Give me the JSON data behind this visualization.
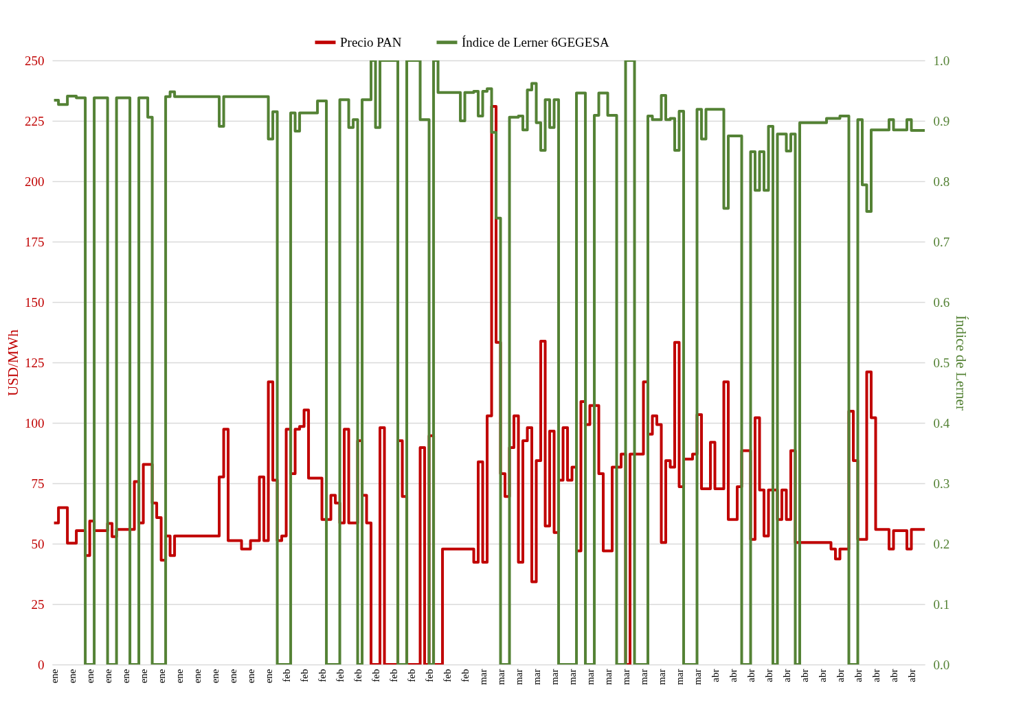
{
  "chart_data": {
    "type": "step",
    "ylabel": "USD/MWh",
    "y2label": "Índice de Lerner",
    "legend": "top",
    "grid": "y",
    "categories": [
      "ene",
      null,
      null,
      null,
      "ene",
      null,
      null,
      null,
      "ene",
      null,
      null,
      null,
      "ene",
      null,
      null,
      null,
      "ene",
      null,
      null,
      null,
      "ene",
      null,
      null,
      null,
      "ene",
      null,
      null,
      null,
      "ene",
      null,
      null,
      null,
      "ene",
      null,
      null,
      null,
      "ene",
      null,
      null,
      null,
      "ene",
      null,
      null,
      null,
      "ene",
      null,
      null,
      null,
      "ene",
      null,
      null,
      null,
      "feb",
      null,
      null,
      null,
      "feb",
      null,
      null,
      null,
      "feb",
      null,
      null,
      null,
      "feb",
      null,
      null,
      null,
      "feb",
      null,
      null,
      null,
      "feb",
      null,
      null,
      null,
      "feb",
      null,
      null,
      null,
      "feb",
      null,
      null,
      null,
      "feb",
      null,
      null,
      null,
      "feb",
      null,
      null,
      null,
      "feb",
      null,
      null,
      null,
      "mar",
      null,
      null,
      null,
      "mar",
      null,
      null,
      null,
      "mar",
      null,
      null,
      null,
      "mar",
      null,
      null,
      null,
      "mar",
      null,
      null,
      null,
      "mar",
      null,
      null,
      null,
      "mar",
      null,
      null,
      null,
      "mar",
      null,
      null,
      null,
      "mar",
      null,
      null,
      null,
      "mar",
      null,
      null,
      null,
      "mar",
      null,
      null,
      null,
      "mar",
      null,
      null,
      null,
      "mar",
      null,
      null,
      null,
      "abr",
      null,
      null,
      null,
      "abr",
      null,
      null,
      null,
      "abr",
      null,
      null,
      null,
      "abr",
      null,
      null,
      null,
      "abr",
      null,
      null,
      null,
      "abr",
      null,
      null,
      null,
      "abr",
      null,
      null,
      null,
      "abr",
      null,
      null,
      null,
      "abr",
      null,
      null,
      null,
      "abr",
      null,
      null,
      null,
      "abr",
      null,
      null,
      null,
      "abr",
      null,
      null,
      null
    ],
    "ylim": [
      0,
      250
    ],
    "yticks": [
      0,
      25,
      50,
      75,
      100,
      125,
      150,
      175,
      200,
      225,
      250
    ],
    "y2lim": [
      0,
      1
    ],
    "y2ticks": [
      {
        "value": 0,
        "label": "0.0"
      },
      0.1,
      0.2,
      0.3,
      0.4,
      0.5,
      0.6,
      0.7,
      0.8,
      0.9,
      {
        "value": 1,
        "label": "1.0"
      }
    ],
    "series": [
      {
        "name": "Precio PAN",
        "color": "#c00000",
        "values": [
          58.6,
          64.9,
          64.9,
          50.2,
          50.2,
          55.4,
          55.4,
          45.1,
          59.4,
          55.4,
          55.4,
          55.4,
          58.4,
          52.9,
          55.9,
          55.9,
          55.9,
          55.9,
          75.7,
          58.6,
          82.8,
          82.8,
          66.8,
          60.8,
          43.2,
          53.2,
          45.1,
          53.2,
          53.2,
          53.2,
          53.2,
          53.2,
          53.2,
          53.2,
          53.2,
          53.2,
          53.2,
          77.6,
          97.4,
          51.3,
          51.3,
          51.3,
          47.8,
          47.8,
          51.3,
          51.3,
          77.6,
          51.3,
          117.0,
          76.3,
          51.3,
          53.2,
          97.4,
          79.0,
          97.4,
          98.5,
          105.3,
          77.1,
          77.1,
          77.1,
          60.0,
          60.0,
          70.0,
          66.8,
          58.6,
          97.4,
          58.6,
          58.6,
          92.6,
          70.0,
          58.6,
          0,
          0,
          98.0,
          0,
          0,
          0,
          92.6,
          69.5,
          0,
          0,
          0,
          89.8,
          0,
          94.7,
          0,
          0,
          47.8,
          47.8,
          47.8,
          47.8,
          47.8,
          47.8,
          47.8,
          42.3,
          83.9,
          42.3,
          102.9,
          231.0,
          133.3,
          79.0,
          69.5,
          89.8,
          102.9,
          42.3,
          92.6,
          98.0,
          34.2,
          84.4,
          133.8,
          57.3,
          96.6,
          54.6,
          76.3,
          98.0,
          76.3,
          81.7,
          47.0,
          108.8,
          99.3,
          107.2,
          107.2,
          79.0,
          47.0,
          47.0,
          81.7,
          81.7,
          87.1,
          0,
          87.1,
          87.1,
          87.1,
          117.0,
          95.3,
          102.9,
          99.3,
          50.5,
          84.4,
          81.7,
          133.3,
          73.6,
          85.0,
          85.0,
          87.1,
          103.4,
          72.7,
          72.7,
          92.0,
          72.7,
          72.7,
          117.0,
          60.0,
          60.0,
          73.6,
          88.5,
          88.5,
          51.8,
          102.1,
          72.2,
          53.2,
          72.2,
          72.2,
          60.0,
          72.2,
          60.0,
          88.5,
          50.5,
          50.5,
          50.5,
          50.5,
          50.5,
          50.5,
          50.5,
          50.5,
          47.8,
          43.7,
          47.8,
          47.8,
          104.8,
          84.4,
          51.8,
          51.8,
          121.1,
          102.1,
          55.9,
          55.9,
          55.9,
          47.8,
          55.4,
          55.4,
          55.4,
          47.8,
          55.9,
          55.9,
          55.9,
          55.9
        ]
      },
      {
        "name": "Índice de Lerner 6GEGESA",
        "color": "#548235",
        "axis": "y2",
        "values": [
          0.934,
          0.927,
          0.927,
          0.941,
          0.941,
          0.938,
          0.938,
          0,
          0,
          0.938,
          0.938,
          0.938,
          0,
          0,
          0.938,
          0.938,
          0.938,
          0,
          0,
          0.938,
          0.938,
          0.906,
          0,
          0,
          0,
          0.94,
          0.948,
          0.94,
          0.94,
          0.94,
          0.94,
          0.94,
          0.94,
          0.94,
          0.94,
          0.94,
          0.94,
          0.891,
          0.94,
          0.94,
          0.94,
          0.94,
          0.94,
          0.94,
          0.94,
          0.94,
          0.94,
          0.94,
          0.87,
          0.915,
          0,
          0,
          0,
          0.913,
          0.883,
          0.913,
          0.913,
          0.913,
          0.913,
          0.933,
          0.933,
          0,
          0,
          0,
          0.935,
          0.935,
          0.889,
          0.902,
          0,
          0.935,
          0.935,
          1,
          0.889,
          1,
          1,
          1,
          1,
          0,
          0,
          1,
          1,
          1,
          0.902,
          0.902,
          0,
          1,
          0.947,
          0.947,
          0.947,
          0.947,
          0.947,
          0.9,
          0.947,
          0.947,
          0.949,
          0.908,
          0.949,
          0.953,
          0.881,
          0.739,
          0,
          0,
          0.906,
          0.906,
          0.908,
          0.885,
          0.951,
          0.962,
          0.897,
          0.851,
          0.935,
          0.889,
          0.935,
          0,
          0,
          0,
          0,
          0.946,
          0.946,
          0,
          0,
          0.909,
          0.946,
          0.946,
          0.909,
          0.909,
          0,
          0,
          1,
          1,
          0,
          0,
          0,
          0.908,
          0.902,
          0.902,
          0.942,
          0.902,
          0.904,
          0.851,
          0.916,
          0,
          0,
          0,
          0.919,
          0.87,
          0.919,
          0.919,
          0.919,
          0.919,
          0.755,
          0.875,
          0.875,
          0.875,
          0,
          0,
          0.849,
          0.785,
          0.849,
          0.785,
          0.891,
          0,
          0.878,
          0.878,
          0.85,
          0.878,
          0,
          0.897,
          0.897,
          0.897,
          0.897,
          0.897,
          0.897,
          0.904,
          0.904,
          0.904,
          0.908,
          0.908,
          0,
          0,
          0.902,
          0.794,
          0.75,
          0.885,
          0.885,
          0.885,
          0.885,
          0.902,
          0.885,
          0.885,
          0.885,
          0.902,
          0.884,
          0.884,
          0.884,
          0.884
        ]
      }
    ]
  }
}
